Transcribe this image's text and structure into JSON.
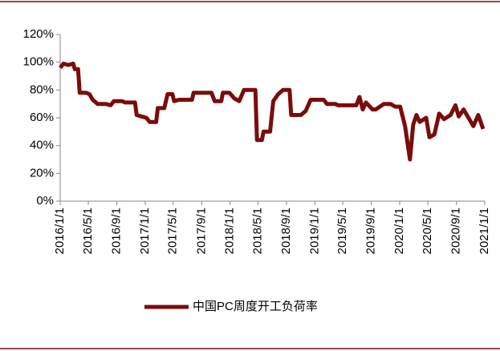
{
  "chart_data": {
    "type": "line",
    "x": [
      "2016/1/1",
      "2016/1/15",
      "2016/2/5",
      "2016/2/26",
      "2016/3/4",
      "2016/3/18",
      "2016/3/25",
      "2016/4/22",
      "2016/5/6",
      "2016/5/20",
      "2016/6/10",
      "2016/7/15",
      "2016/8/5",
      "2016/8/19",
      "2016/9/23",
      "2016/10/7",
      "2016/11/18",
      "2016/11/25",
      "2016/12/16",
      "2017/1/6",
      "2017/1/20",
      "2017/2/17",
      "2017/2/24",
      "2017/3/24",
      "2017/4/7",
      "2017/4/28",
      "2017/5/5",
      "2017/5/26",
      "2017/7/21",
      "2017/7/28",
      "2017/10/13",
      "2017/10/27",
      "2017/11/24",
      "2017/12/1",
      "2017/12/29",
      "2018/1/19",
      "2018/2/9",
      "2018/3/2",
      "2018/4/20",
      "2018/4/27",
      "2018/5/18",
      "2018/5/25",
      "2018/6/22",
      "2018/7/6",
      "2018/7/27",
      "2018/8/17",
      "2018/9/14",
      "2018/9/21",
      "2018/11/2",
      "2018/11/23",
      "2018/12/14",
      "2019/2/8",
      "2019/2/22",
      "2019/3/29",
      "2019/4/12",
      "2019/6/28",
      "2019/7/12",
      "2019/7/26",
      "2019/8/9",
      "2019/9/6",
      "2019/9/20",
      "2019/10/25",
      "2019/11/22",
      "2019/12/13",
      "2020/1/3",
      "2020/1/24",
      "2020/2/14",
      "2020/2/28",
      "2020/3/13",
      "2020/3/27",
      "2020/4/24",
      "2020/5/8",
      "2020/5/29",
      "2020/6/19",
      "2020/7/10",
      "2020/8/7",
      "2020/8/28",
      "2020/9/11",
      "2020/10/2",
      "2020/10/23",
      "2020/11/13",
      "2020/12/4",
      "2020/12/25"
    ],
    "series": [
      {
        "name": "中国PC周度开工负荷率",
        "color": "#7b0c0c",
        "values": [
          96,
          99,
          98,
          99,
          95,
          95,
          78,
          78,
          77,
          73,
          70,
          70,
          69,
          72,
          72,
          71,
          71,
          62,
          61,
          60,
          57,
          57,
          67,
          67,
          77,
          77,
          72,
          73,
          73,
          78,
          78,
          72,
          72,
          78,
          78,
          74,
          72,
          80,
          80,
          44,
          44,
          50,
          50,
          72,
          77,
          80,
          80,
          62,
          62,
          65,
          73,
          73,
          70,
          70,
          69,
          69,
          75,
          66,
          71,
          66,
          66,
          70,
          70,
          68,
          68,
          54,
          30,
          55,
          62,
          57,
          60,
          46,
          48,
          63,
          59,
          62,
          69,
          61,
          66,
          60,
          54,
          62,
          52
        ]
      }
    ],
    "xticks": [
      "2016/1/1",
      "2016/5/1",
      "2016/9/1",
      "2017/1/1",
      "2017/5/1",
      "2017/9/1",
      "2018/1/1",
      "2018/5/1",
      "2018/9/1",
      "2019/1/1",
      "2019/5/1",
      "2019/9/1",
      "2020/1/1",
      "2020/5/1",
      "2020/9/1",
      "2021/1/1"
    ],
    "ylim": [
      0,
      120
    ],
    "yticks": [
      {
        "value": 0,
        "label": "0%"
      },
      {
        "value": 20,
        "label": "20%"
      },
      {
        "value": 40,
        "label": "40%"
      },
      {
        "value": 60,
        "label": "60%"
      },
      {
        "value": 80,
        "label": "80%"
      },
      {
        "value": 100,
        "label": "100%"
      },
      {
        "value": 120,
        "label": "120%"
      }
    ],
    "legend": "bottom"
  }
}
